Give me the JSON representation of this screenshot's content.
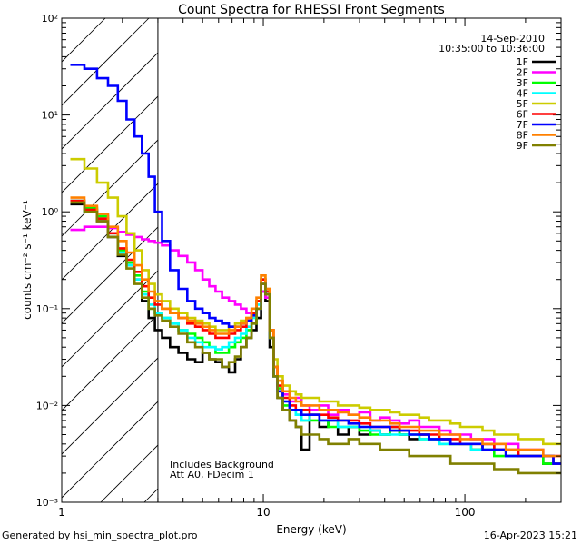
{
  "chart_data": {
    "type": "line",
    "title": "Count Spectra for RHESSI Front Segments",
    "xlabel": "Energy (keV)",
    "ylabel": "counts cm⁻² s⁻¹ keV⁻¹",
    "xscale": "log",
    "yscale": "log",
    "xlim": [
      1,
      300
    ],
    "ylim": [
      0.001,
      100
    ],
    "x_ticks": [
      {
        "value": 1,
        "label": "1"
      },
      {
        "value": 10,
        "label": "10"
      },
      {
        "value": 100,
        "label": "100"
      }
    ],
    "y_ticks": [
      {
        "value": 0.001,
        "label": "10⁻³"
      },
      {
        "value": 0.01,
        "label": "10⁻²"
      },
      {
        "value": 0.1,
        "label": "10⁻¹"
      },
      {
        "value": 1,
        "label": "10⁰"
      },
      {
        "value": 10,
        "label": "10¹"
      },
      {
        "value": 100,
        "label": "10²"
      }
    ],
    "date": "14-Sep-2010",
    "time_range": "10:35:00 to 10:36:00",
    "annotations": [
      "Includes Background",
      "Att A0, FDecim 1"
    ],
    "hatched_region": {
      "xmin": 1,
      "xmax": 3
    },
    "x": [
      1.2,
      1.4,
      1.6,
      1.8,
      2.0,
      2.2,
      2.4,
      2.6,
      2.8,
      3.0,
      3.3,
      3.6,
      4.0,
      4.4,
      4.8,
      5.2,
      5.6,
      6.0,
      6.5,
      7.0,
      7.5,
      8.0,
      8.5,
      9.0,
      9.5,
      10.0,
      10.5,
      11.0,
      11.5,
      12.0,
      13.0,
      14.0,
      15.0,
      16.0,
      18.0,
      20.0,
      22.0,
      25.0,
      28.0,
      32.0,
      36.0,
      40.0,
      45.0,
      50.0,
      56.0,
      63.0,
      70.0,
      80.0,
      90.0,
      100.0,
      115.0,
      130.0,
      150.0,
      170.0,
      200.0,
      230.0,
      260.0,
      290.0
    ],
    "series": [
      {
        "name": "1F",
        "color": "#000000",
        "values": [
          1.2,
          1.0,
          0.8,
          0.55,
          0.35,
          0.28,
          0.2,
          0.12,
          0.08,
          0.06,
          0.05,
          0.04,
          0.035,
          0.03,
          0.028,
          0.035,
          0.03,
          0.028,
          0.025,
          0.022,
          0.03,
          0.04,
          0.05,
          0.06,
          0.08,
          0.15,
          0.12,
          0.04,
          0.02,
          0.012,
          0.009,
          0.007,
          0.006,
          0.0035,
          0.008,
          0.006,
          0.007,
          0.005,
          0.006,
          0.005,
          0.0055,
          0.005,
          0.006,
          0.005,
          0.0045,
          0.005,
          0.0045,
          0.0045,
          0.004,
          0.004,
          0.0035,
          0.004,
          0.0035,
          0.003,
          0.003,
          0.003,
          0.0025,
          0.0025
        ]
      },
      {
        "name": "2F",
        "color": "#ff00ff",
        "values": [
          0.65,
          0.7,
          0.7,
          0.68,
          0.62,
          0.58,
          0.55,
          0.52,
          0.5,
          0.48,
          0.45,
          0.4,
          0.35,
          0.3,
          0.25,
          0.2,
          0.17,
          0.15,
          0.13,
          0.12,
          0.11,
          0.1,
          0.09,
          0.085,
          0.1,
          0.15,
          0.13,
          0.05,
          0.025,
          0.018,
          0.013,
          0.011,
          0.012,
          0.01,
          0.009,
          0.01,
          0.008,
          0.009,
          0.008,
          0.0085,
          0.007,
          0.0075,
          0.007,
          0.0065,
          0.007,
          0.006,
          0.006,
          0.0055,
          0.005,
          0.005,
          0.0045,
          0.0045,
          0.004,
          0.004,
          0.0035,
          0.0035,
          0.003,
          0.003
        ]
      },
      {
        "name": "3F",
        "color": "#00ff00",
        "values": [
          1.3,
          1.1,
          0.9,
          0.6,
          0.4,
          0.3,
          0.22,
          0.15,
          0.1,
          0.09,
          0.08,
          0.07,
          0.06,
          0.055,
          0.05,
          0.045,
          0.04,
          0.035,
          0.035,
          0.04,
          0.045,
          0.05,
          0.06,
          0.07,
          0.1,
          0.2,
          0.15,
          0.05,
          0.02,
          0.015,
          0.01,
          0.009,
          0.008,
          0.007,
          0.007,
          0.007,
          0.006,
          0.006,
          0.006,
          0.0055,
          0.005,
          0.005,
          0.0055,
          0.005,
          0.005,
          0.0045,
          0.0045,
          0.004,
          0.004,
          0.004,
          0.0035,
          0.0035,
          0.003,
          0.003,
          0.003,
          0.003,
          0.0025,
          0.0025
        ]
      },
      {
        "name": "4F",
        "color": "#00ffff",
        "values": [
          1.3,
          1.0,
          0.85,
          0.6,
          0.38,
          0.28,
          0.2,
          0.14,
          0.11,
          0.09,
          0.08,
          0.07,
          0.06,
          0.05,
          0.045,
          0.04,
          0.04,
          0.038,
          0.04,
          0.045,
          0.05,
          0.055,
          0.065,
          0.08,
          0.11,
          0.2,
          0.15,
          0.05,
          0.02,
          0.014,
          0.011,
          0.009,
          0.008,
          0.007,
          0.008,
          0.007,
          0.007,
          0.006,
          0.006,
          0.006,
          0.0055,
          0.005,
          0.005,
          0.005,
          0.005,
          0.0045,
          0.0045,
          0.004,
          0.004,
          0.004,
          0.0035,
          0.0035,
          0.0035,
          0.003,
          0.003,
          0.003,
          0.003,
          0.0025
        ]
      },
      {
        "name": "5F",
        "color": "#cccc00",
        "values": [
          3.5,
          2.8,
          2.0,
          1.4,
          0.9,
          0.6,
          0.4,
          0.25,
          0.18,
          0.14,
          0.12,
          0.1,
          0.09,
          0.08,
          0.075,
          0.07,
          0.065,
          0.06,
          0.06,
          0.065,
          0.07,
          0.075,
          0.08,
          0.09,
          0.12,
          0.22,
          0.16,
          0.06,
          0.03,
          0.02,
          0.016,
          0.014,
          0.013,
          0.012,
          0.012,
          0.011,
          0.011,
          0.01,
          0.01,
          0.0095,
          0.009,
          0.009,
          0.0085,
          0.008,
          0.008,
          0.0075,
          0.007,
          0.007,
          0.0065,
          0.006,
          0.006,
          0.0055,
          0.005,
          0.005,
          0.0045,
          0.0045,
          0.004,
          0.004
        ]
      },
      {
        "name": "6F",
        "color": "#ff0000",
        "values": [
          1.3,
          1.05,
          0.85,
          0.6,
          0.42,
          0.32,
          0.24,
          0.17,
          0.13,
          0.11,
          0.1,
          0.09,
          0.08,
          0.07,
          0.065,
          0.06,
          0.055,
          0.05,
          0.05,
          0.055,
          0.06,
          0.065,
          0.075,
          0.09,
          0.12,
          0.2,
          0.15,
          0.06,
          0.025,
          0.016,
          0.012,
          0.01,
          0.009,
          0.009,
          0.008,
          0.008,
          0.0075,
          0.007,
          0.007,
          0.0065,
          0.006,
          0.006,
          0.006,
          0.0055,
          0.0055,
          0.005,
          0.005,
          0.0045,
          0.0045,
          0.004,
          0.004,
          0.004,
          0.0035,
          0.0035,
          0.003,
          0.003,
          0.003,
          0.0025
        ]
      },
      {
        "name": "7F",
        "color": "#0000ff",
        "values": [
          33,
          30,
          24,
          20,
          14,
          9,
          6,
          4,
          2.3,
          1.0,
          0.5,
          0.25,
          0.16,
          0.12,
          0.1,
          0.09,
          0.08,
          0.075,
          0.07,
          0.065,
          0.065,
          0.07,
          0.075,
          0.085,
          0.1,
          0.18,
          0.14,
          0.05,
          0.02,
          0.014,
          0.011,
          0.009,
          0.009,
          0.008,
          0.008,
          0.007,
          0.007,
          0.007,
          0.0065,
          0.006,
          0.006,
          0.006,
          0.0055,
          0.0055,
          0.005,
          0.005,
          0.0045,
          0.0045,
          0.004,
          0.004,
          0.004,
          0.0035,
          0.0035,
          0.003,
          0.003,
          0.003,
          0.003,
          0.0025
        ]
      },
      {
        "name": "8F",
        "color": "#ff8000",
        "values": [
          1.4,
          1.15,
          0.95,
          0.7,
          0.5,
          0.38,
          0.28,
          0.2,
          0.15,
          0.12,
          0.1,
          0.09,
          0.08,
          0.075,
          0.07,
          0.065,
          0.06,
          0.055,
          0.055,
          0.06,
          0.065,
          0.07,
          0.08,
          0.1,
          0.13,
          0.22,
          0.16,
          0.06,
          0.025,
          0.018,
          0.014,
          0.012,
          0.011,
          0.01,
          0.01,
          0.009,
          0.009,
          0.0085,
          0.008,
          0.0075,
          0.007,
          0.007,
          0.0065,
          0.006,
          0.006,
          0.0055,
          0.0055,
          0.005,
          0.005,
          0.0045,
          0.0045,
          0.004,
          0.004,
          0.0035,
          0.0035,
          0.0035,
          0.003,
          0.003
        ]
      },
      {
        "name": "9F",
        "color": "#808000",
        "values": [
          1.25,
          1.0,
          0.8,
          0.55,
          0.36,
          0.26,
          0.18,
          0.13,
          0.1,
          0.085,
          0.075,
          0.065,
          0.055,
          0.045,
          0.04,
          0.035,
          0.03,
          0.03,
          0.025,
          0.028,
          0.032,
          0.04,
          0.05,
          0.07,
          0.1,
          0.18,
          0.14,
          0.05,
          0.02,
          0.012,
          0.009,
          0.007,
          0.006,
          0.005,
          0.005,
          0.0045,
          0.004,
          0.004,
          0.0045,
          0.004,
          0.004,
          0.0035,
          0.0035,
          0.0035,
          0.003,
          0.003,
          0.003,
          0.003,
          0.0025,
          0.0025,
          0.0025,
          0.0025,
          0.0022,
          0.0022,
          0.002,
          0.002,
          0.002,
          0.002
        ]
      }
    ]
  },
  "footer": {
    "left": "Generated by hsi_min_spectra_plot.pro",
    "right": "16-Apr-2023 15:21"
  }
}
